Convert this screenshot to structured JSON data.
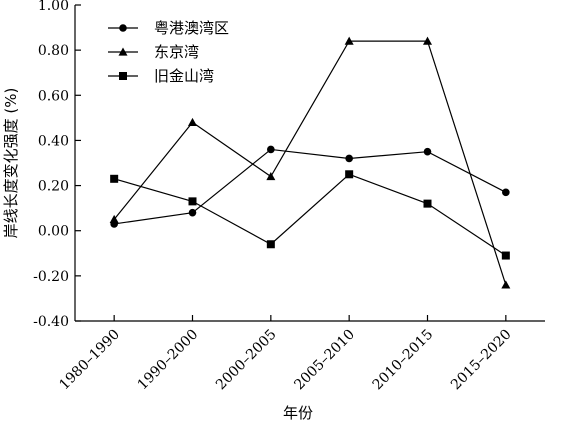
{
  "chart_data": {
    "type": "line",
    "categories": [
      "1980–1990",
      "1990–2000",
      "2000–2005",
      "2005–2010",
      "2010–2015",
      "2015–2020"
    ],
    "series": [
      {
        "name": "粤港澳湾区",
        "marker": "circle",
        "values": [
          0.03,
          0.08,
          0.36,
          0.32,
          0.35,
          0.17
        ]
      },
      {
        "name": "东京湾",
        "marker": "triangle",
        "values": [
          0.05,
          0.48,
          0.24,
          0.84,
          0.84,
          -0.24
        ]
      },
      {
        "name": "旧金山湾",
        "marker": "square",
        "values": [
          0.23,
          0.13,
          -0.06,
          0.25,
          0.12,
          -0.11
        ]
      }
    ],
    "yticks": [
      "-0.40",
      "-0.20",
      "0.00",
      "0.20",
      "0.40",
      "0.60",
      "0.80",
      "1.00"
    ],
    "ylim": [
      -0.4,
      1.0
    ],
    "xlabel": "年份",
    "ylabel": "岸线长度变化强度 (%)",
    "legend": "top-left",
    "grid": false,
    "color": "#000000"
  }
}
